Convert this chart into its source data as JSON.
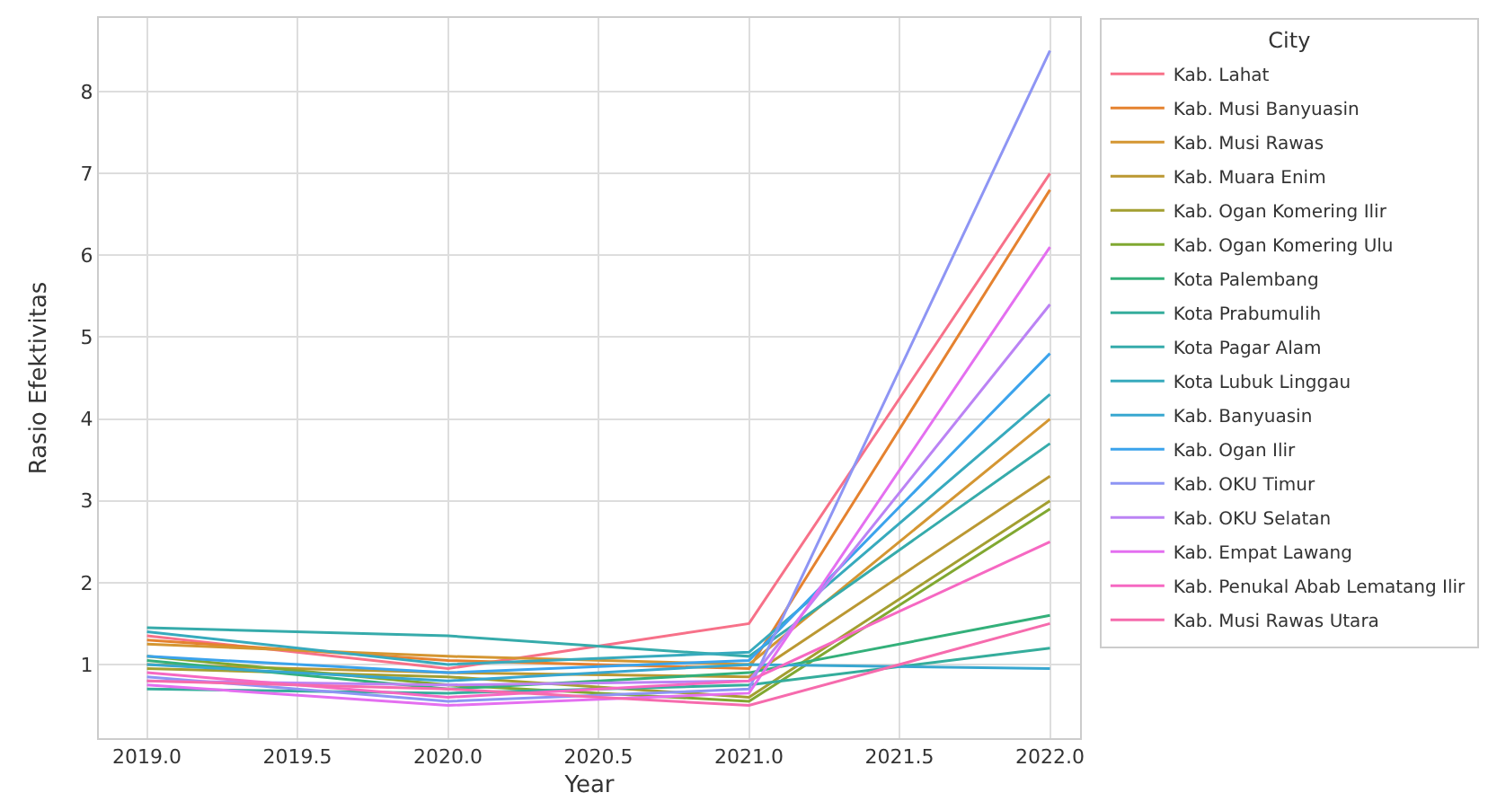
{
  "chart_data": {
    "type": "line",
    "xlabel": "Year",
    "ylabel": "Rasio Efektivitas",
    "legend_title": "City",
    "x": [
      2019,
      2020,
      2021,
      2022
    ],
    "xlim": [
      2018.84,
      2022.1
    ],
    "ylim": [
      0.1,
      8.9
    ],
    "xticks": [
      {
        "value": 2019,
        "label": "2019.0"
      },
      {
        "value": 2019.5,
        "label": "2019.5"
      },
      {
        "value": 2020,
        "label": "2020.0"
      },
      {
        "value": 2020.5,
        "label": "2020.5"
      },
      {
        "value": 2021,
        "label": "2021.0"
      },
      {
        "value": 2021.5,
        "label": "2021.5"
      },
      {
        "value": 2022,
        "label": "2022.0"
      }
    ],
    "yticks": [
      1,
      2,
      3,
      4,
      5,
      6,
      7,
      8
    ],
    "grid": true,
    "legend": "right",
    "marker": "none",
    "line_style": "solid",
    "series": [
      {
        "name": "Kab. Lahat",
        "color": "#f77189",
        "values": [
          1.35,
          0.95,
          1.5,
          7.0
        ]
      },
      {
        "name": "Kab. Musi Banyuasin",
        "color": "#e5822f",
        "values": [
          1.3,
          1.05,
          0.95,
          6.8
        ]
      },
      {
        "name": "Kab. Musi Rawas",
        "color": "#d49632",
        "values": [
          1.25,
          1.1,
          1.0,
          4.0
        ]
      },
      {
        "name": "Kab. Muara Enim",
        "color": "#bb9832",
        "values": [
          1.0,
          0.9,
          0.85,
          3.3
        ]
      },
      {
        "name": "Kab. Ogan Komering Ilir",
        "color": "#a39f31",
        "values": [
          0.95,
          0.85,
          0.6,
          3.0
        ]
      },
      {
        "name": "Kab. Ogan Komering Ulu",
        "color": "#80a831",
        "values": [
          1.1,
          0.75,
          0.55,
          2.9
        ]
      },
      {
        "name": "Kota Palembang",
        "color": "#33b07a",
        "values": [
          1.05,
          0.7,
          0.9,
          1.6
        ]
      },
      {
        "name": "Kota Prabumulih",
        "color": "#35ad9c",
        "values": [
          0.7,
          0.65,
          0.75,
          1.2
        ]
      },
      {
        "name": "Kota Pagar Alam",
        "color": "#36abab",
        "values": [
          1.45,
          1.35,
          1.1,
          3.7
        ]
      },
      {
        "name": "Kota Lubuk Linggau",
        "color": "#37aabd",
        "values": [
          1.4,
          1.0,
          1.15,
          4.3
        ]
      },
      {
        "name": "Kab. Banyuasin",
        "color": "#38a7d0",
        "values": [
          1.0,
          0.8,
          1.0,
          0.95
        ]
      },
      {
        "name": "Kab. Ogan Ilir",
        "color": "#3ba3ec",
        "values": [
          1.1,
          0.9,
          1.05,
          4.8
        ]
      },
      {
        "name": "Kab. OKU Timur",
        "color": "#8e95f4",
        "values": [
          0.85,
          0.55,
          0.7,
          8.5
        ]
      },
      {
        "name": "Kab. OKU Selatan",
        "color": "#bb83f4",
        "values": [
          0.8,
          0.75,
          0.8,
          5.4
        ]
      },
      {
        "name": "Kab. Empat Lawang",
        "color": "#e46ff0",
        "values": [
          0.75,
          0.5,
          0.65,
          6.1
        ]
      },
      {
        "name": "Kab. Penukal Abab Lematang Ilir",
        "color": "#f668c2",
        "values": [
          0.9,
          0.6,
          0.8,
          2.5
        ]
      },
      {
        "name": "Kab. Musi Rawas Utara",
        "color": "#f66bad",
        "values": [
          0.8,
          0.7,
          0.5,
          1.5
        ]
      }
    ]
  }
}
